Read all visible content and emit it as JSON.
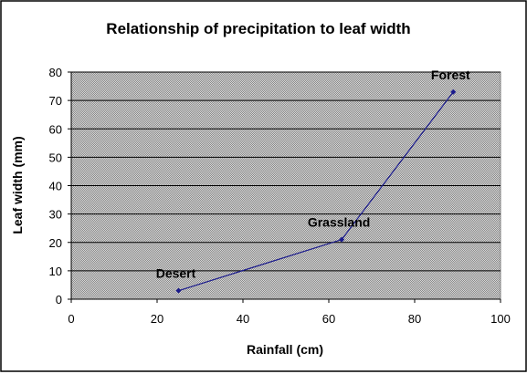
{
  "chart_data": {
    "type": "scatter",
    "title": "Relationship of precipitation to leaf width",
    "xlabel": "Rainfall (cm)",
    "ylabel": "Leaf width (mm)",
    "xlim": [
      0,
      100
    ],
    "ylim": [
      0,
      80
    ],
    "x_ticks": [
      0,
      20,
      40,
      60,
      80,
      100
    ],
    "y_ticks": [
      0,
      10,
      20,
      30,
      40,
      50,
      60,
      70,
      80
    ],
    "grid": "horizontal",
    "legend": "none",
    "colors": {
      "series": "#1a1a8c",
      "plot_background": "#c0c0c0",
      "gridline": "#000000"
    },
    "series": [
      {
        "x": [
          25,
          63,
          89
        ],
        "y": [
          3,
          21,
          73
        ],
        "labels": [
          "Desert",
          "Grassland",
          "Forest"
        ]
      }
    ]
  }
}
